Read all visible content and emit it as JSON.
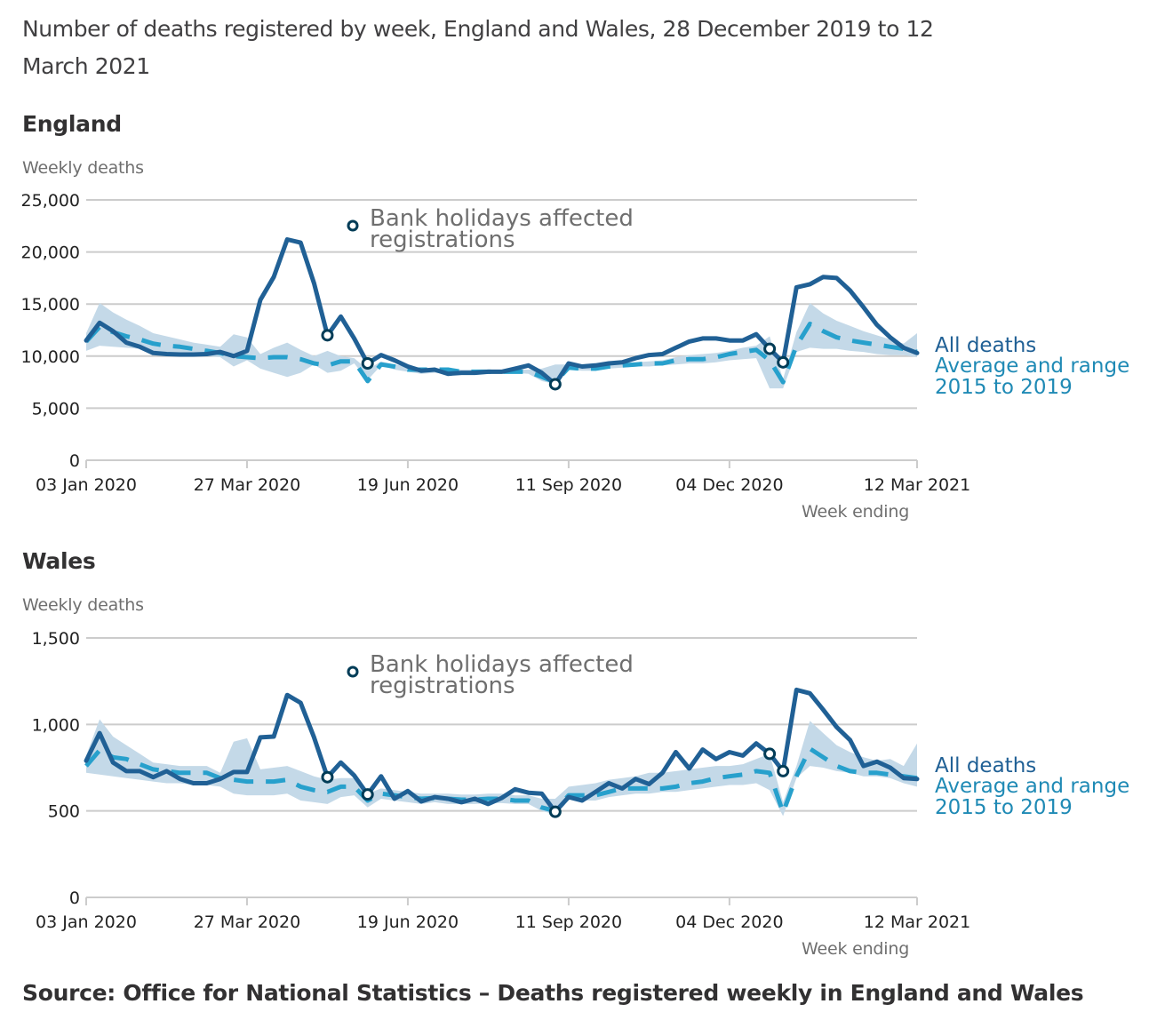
{
  "title": "Number of deaths registered by week, England and Wales, 28 December 2019 to 12 March 2021",
  "source": "Source: Office for National Statistics – Deaths registered weekly in England and Wales",
  "colors": {
    "all_deaths": "#206095",
    "average": "#27a0cc",
    "range": "#c4d9e8",
    "marker": "#003c57",
    "grid": "#cccccc",
    "annotation_text": "#6f6f6f"
  },
  "chart_data": [
    {
      "type": "line",
      "title": "England",
      "ylabel": "Weekly deaths",
      "xlabel": "Week ending",
      "ylim": [
        0,
        25000
      ],
      "yticks": [
        0,
        5000,
        10000,
        15000,
        20000,
        25000
      ],
      "ytick_labels": [
        "0",
        "5,000",
        "10,000",
        "15,000",
        "20,000",
        "25,000"
      ],
      "xtick_labels": [
        "03 Jan 2020",
        "27 Mar 2020",
        "19 Jun 2020",
        "11 Sep 2020",
        "04 Dec 2020",
        "12 Mar 2021"
      ],
      "xtick_week_index": [
        0,
        12,
        24,
        36,
        48,
        62
      ],
      "grid": true,
      "annotation": "Bank holidays affected registrations",
      "bank_holiday_week_index": [
        18,
        21,
        35,
        51,
        52
      ],
      "legend": [
        "All deaths",
        "Average and range 2015 to 2019"
      ],
      "legend_placement": "right",
      "series": [
        {
          "name": "All deaths",
          "values": [
            11500,
            13200,
            12400,
            11300,
            10900,
            10300,
            10200,
            10150,
            10150,
            10200,
            10400,
            10000,
            10500,
            15400,
            17600,
            21200,
            20900,
            17000,
            12000,
            13800,
            11700,
            9300,
            10100,
            9600,
            9000,
            8600,
            8700,
            8300,
            8400,
            8400,
            8500,
            8500,
            8800,
            9100,
            8400,
            7300,
            9300,
            9000,
            9100,
            9300,
            9400,
            9800,
            10100,
            10200,
            10800,
            11400,
            11700,
            11700,
            11500,
            11500,
            12100,
            10700,
            9400,
            16600,
            16900,
            17600,
            17500,
            16300,
            14700,
            13000,
            11800,
            10800,
            10300
          ]
        },
        {
          "name": "Average 2015 to 2019",
          "values": [
            11400,
            12800,
            12300,
            11900,
            11600,
            11200,
            11000,
            10900,
            10700,
            10500,
            10300,
            10000,
            9900,
            9800,
            9900,
            9900,
            9700,
            9300,
            9100,
            9500,
            9500,
            7600,
            9200,
            9000,
            8700,
            8700,
            8700,
            8700,
            8500,
            8500,
            8500,
            8500,
            8500,
            8500,
            8000,
            7500,
            8900,
            8800,
            8800,
            9000,
            9100,
            9200,
            9300,
            9300,
            9600,
            9700,
            9700,
            9900,
            10200,
            10400,
            10600,
            9600,
            7500,
            11000,
            13100,
            12400,
            11800,
            11500,
            11300,
            11100,
            10900,
            10700,
            10400
          ]
        },
        {
          "name": "Range min 2015 to 2019",
          "values": [
            10500,
            11000,
            10900,
            10800,
            10700,
            10400,
            10200,
            10100,
            10000,
            10000,
            9900,
            9000,
            9600,
            8800,
            8400,
            8000,
            8400,
            9200,
            8400,
            8600,
            9300,
            7700,
            9100,
            8700,
            8500,
            8300,
            8400,
            8300,
            8300,
            8200,
            8300,
            8300,
            8400,
            8300,
            7600,
            7300,
            8700,
            8600,
            8600,
            8800,
            8900,
            9000,
            9000,
            9100,
            9200,
            9300,
            9300,
            9400,
            9600,
            9700,
            9800,
            6900,
            6900,
            10400,
            10800,
            10700,
            10700,
            10500,
            10400,
            10200,
            10100,
            10100,
            9900
          ]
        },
        {
          "name": "Range max 2015 to 2019",
          "values": [
            12200,
            15100,
            14200,
            13500,
            12900,
            12200,
            11900,
            11600,
            11300,
            11100,
            10900,
            12100,
            11800,
            10200,
            10800,
            11300,
            10600,
            10000,
            10500,
            10000,
            9800,
            8700,
            9500,
            9200,
            9000,
            8900,
            8800,
            8800,
            8700,
            8700,
            8700,
            8700,
            8700,
            8700,
            8800,
            9200,
            9200,
            9000,
            9000,
            9200,
            9300,
            9400,
            9500,
            9600,
            9900,
            10100,
            10200,
            10300,
            10500,
            10800,
            11000,
            11900,
            7800,
            12300,
            15100,
            14100,
            13400,
            12900,
            12400,
            12000,
            11600,
            11200,
            12200
          ]
        }
      ]
    },
    {
      "type": "line",
      "title": "Wales",
      "ylabel": "Weekly deaths",
      "xlabel": "Week ending",
      "ylim": [
        0,
        1500
      ],
      "yticks": [
        0,
        500,
        1000,
        1500
      ],
      "ytick_labels": [
        "0",
        "500",
        "1,000",
        "1,500"
      ],
      "xtick_labels": [
        "03 Jan 2020",
        "27 Mar 2020",
        "19 Jun 2020",
        "11 Sep 2020",
        "04 Dec 2020",
        "12 Mar 2021"
      ],
      "xtick_week_index": [
        0,
        12,
        24,
        36,
        48,
        62
      ],
      "grid": true,
      "annotation": "Bank holidays affected registrations",
      "bank_holiday_week_index": [
        18,
        21,
        35,
        51,
        52
      ],
      "legend": [
        "All deaths",
        "Average and range 2015 to 2019"
      ],
      "legend_placement": "right",
      "series": [
        {
          "name": "All deaths",
          "values": [
            790,
            950,
            780,
            730,
            730,
            695,
            730,
            685,
            660,
            660,
            685,
            725,
            725,
            925,
            930,
            1170,
            1125,
            925,
            695,
            780,
            705,
            595,
            700,
            570,
            615,
            555,
            580,
            570,
            550,
            570,
            540,
            575,
            625,
            605,
            600,
            495,
            580,
            560,
            610,
            660,
            630,
            685,
            655,
            720,
            840,
            745,
            855,
            800,
            840,
            820,
            890,
            830,
            730,
            1200,
            1180,
            1085,
            985,
            910,
            760,
            785,
            750,
            690,
            685
          ]
        },
        {
          "name": "Average 2015 to 2019",
          "values": [
            760,
            850,
            810,
            800,
            770,
            740,
            730,
            720,
            720,
            720,
            690,
            680,
            670,
            670,
            670,
            680,
            640,
            620,
            610,
            640,
            640,
            560,
            600,
            590,
            580,
            570,
            575,
            570,
            565,
            565,
            570,
            570,
            560,
            560,
            520,
            500,
            590,
            590,
            590,
            610,
            630,
            630,
            630,
            630,
            640,
            660,
            670,
            690,
            700,
            710,
            730,
            720,
            490,
            700,
            860,
            810,
            760,
            730,
            720,
            720,
            710,
            700,
            690
          ]
        },
        {
          "name": "Range min 2015 to 2019",
          "values": [
            720,
            710,
            700,
            690,
            680,
            670,
            660,
            660,
            650,
            650,
            640,
            600,
            590,
            590,
            590,
            600,
            560,
            550,
            540,
            580,
            590,
            520,
            570,
            560,
            550,
            540,
            550,
            540,
            540,
            540,
            545,
            545,
            540,
            540,
            500,
            480,
            570,
            560,
            560,
            580,
            590,
            600,
            600,
            610,
            610,
            620,
            630,
            640,
            650,
            650,
            660,
            620,
            470,
            690,
            760,
            750,
            730,
            720,
            700,
            700,
            690,
            660,
            640
          ]
        },
        {
          "name": "Range max 2015 to 2019",
          "values": [
            820,
            1030,
            930,
            880,
            830,
            780,
            770,
            760,
            760,
            760,
            720,
            900,
            920,
            740,
            750,
            760,
            730,
            700,
            680,
            690,
            690,
            600,
            630,
            620,
            610,
            600,
            600,
            600,
            595,
            595,
            600,
            600,
            590,
            590,
            570,
            570,
            640,
            650,
            660,
            680,
            690,
            700,
            720,
            720,
            730,
            740,
            750,
            760,
            760,
            770,
            800,
            830,
            550,
            760,
            1020,
            950,
            880,
            840,
            810,
            790,
            800,
            760,
            890
          ]
        }
      ]
    }
  ],
  "panels": {
    "england": {
      "title": "England",
      "ylabel": "Weekly deaths",
      "xlabel": "Week ending",
      "annotation_line1": "Bank holidays affected",
      "annotation_line2": "registrations",
      "legend_all": "All deaths",
      "legend_avg1": "Average and range",
      "legend_avg2": "2015 to 2019"
    },
    "wales": {
      "title": "Wales",
      "ylabel": "Weekly deaths",
      "xlabel": "Week ending",
      "annotation_line1": "Bank holidays affected",
      "annotation_line2": "registrations",
      "legend_all": "All deaths",
      "legend_avg1": "Average and range",
      "legend_avg2": "2015 to 2019"
    }
  }
}
